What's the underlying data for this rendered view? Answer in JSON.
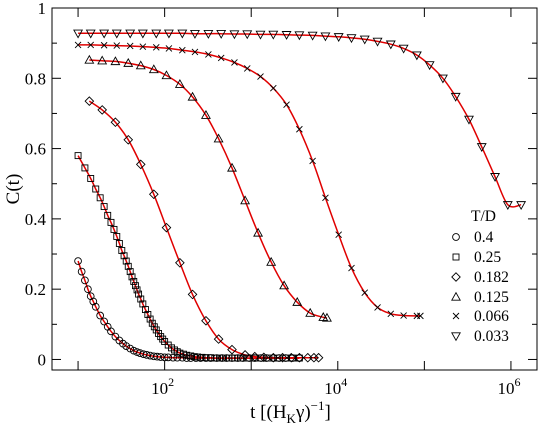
{
  "chart_data": {
    "type": "scatter",
    "title": "",
    "xlabel": {
      "prefix": "t [(H",
      "sub": "K",
      "suffix": "γ)",
      "sup": "−1",
      "close": "]"
    },
    "ylabel": "C(t)",
    "x_scale": "log",
    "xlim": [
      5,
      2000000
    ],
    "ylim": [
      -0.03,
      1.0
    ],
    "x_ticks": [
      {
        "value": 100,
        "base": "10",
        "exp": "2"
      },
      {
        "value": 10000,
        "base": "10",
        "exp": "4"
      },
      {
        "value": 1000000,
        "base": "10",
        "exp": "6"
      }
    ],
    "y_ticks": [
      {
        "value": 0,
        "label": "0"
      },
      {
        "value": 0.2,
        "label": "0.2"
      },
      {
        "value": 0.4,
        "label": "0.4"
      },
      {
        "value": 0.6,
        "label": "0.6"
      },
      {
        "value": 0.8,
        "label": "0.8"
      },
      {
        "value": 1.0,
        "label": "1"
      }
    ],
    "grid": false,
    "legend": {
      "title": "T/D",
      "position": "right"
    },
    "fit_color": "#e00000",
    "marker_color": "#000000",
    "series": [
      {
        "name": "0.4",
        "marker": "circle",
        "x": [
          10,
          11,
          12,
          13,
          14,
          15,
          16,
          18,
          20,
          22,
          24,
          27,
          30,
          33,
          36,
          40,
          44,
          48,
          52,
          57,
          62,
          68,
          75,
          82,
          90,
          100,
          110,
          125,
          140,
          160,
          180,
          200,
          230,
          260,
          300,
          340,
          400,
          460,
          520,
          600,
          700,
          800,
          950,
          1100,
          1300,
          1500,
          1800,
          2100,
          2500,
          3000,
          3600
        ],
        "y": [
          0.28,
          0.25,
          0.225,
          0.2,
          0.18,
          0.165,
          0.15,
          0.125,
          0.108,
          0.093,
          0.08,
          0.065,
          0.054,
          0.045,
          0.038,
          0.031,
          0.025,
          0.021,
          0.018,
          0.015,
          0.013,
          0.011,
          0.009,
          0.008,
          0.007,
          0.006,
          0.006,
          0.005,
          0.005,
          0.005,
          0.004,
          0.004,
          0.004,
          0.004,
          0.004,
          0.004,
          0.004,
          0.004,
          0.004,
          0.004,
          0.004,
          0.004,
          0.004,
          0.004,
          0.004,
          0.004,
          0.004,
          0.004,
          0.004,
          0.004,
          0.004
        ]
      },
      {
        "name": "0.25",
        "marker": "square",
        "x": [
          10,
          12,
          14,
          16,
          18,
          20,
          22,
          24,
          26,
          28,
          30,
          32,
          34,
          36,
          38,
          40,
          42,
          44,
          46,
          48,
          50,
          53,
          56,
          60,
          64,
          68,
          72,
          76,
          80,
          85,
          90,
          95,
          100,
          110,
          120,
          130,
          140,
          150,
          165,
          180,
          200,
          220,
          240,
          270,
          300,
          340,
          380,
          430,
          480,
          550,
          650,
          750,
          900,
          1100,
          1300,
          1600,
          2000,
          2500,
          3000,
          3600
        ],
        "y": [
          0.58,
          0.545,
          0.515,
          0.485,
          0.46,
          0.435,
          0.41,
          0.39,
          0.37,
          0.35,
          0.33,
          0.31,
          0.295,
          0.28,
          0.265,
          0.25,
          0.235,
          0.222,
          0.21,
          0.198,
          0.186,
          0.172,
          0.158,
          0.142,
          0.128,
          0.115,
          0.103,
          0.093,
          0.084,
          0.074,
          0.065,
          0.058,
          0.051,
          0.041,
          0.033,
          0.027,
          0.022,
          0.018,
          0.015,
          0.012,
          0.01,
          0.008,
          0.007,
          0.006,
          0.005,
          0.005,
          0.004,
          0.004,
          0.004,
          0.004,
          0.004,
          0.004,
          0.004,
          0.004,
          0.004,
          0.004,
          0.004,
          0.004,
          0.004,
          0.004
        ]
      },
      {
        "name": "0.182",
        "marker": "diamond",
        "x": [
          13.5,
          19,
          27,
          38,
          53,
          75,
          105,
          150,
          210,
          300,
          420,
          600,
          850,
          1100,
          1400,
          1800,
          2300,
          2900,
          3600,
          4500,
          5300,
          6000
        ],
        "y": [
          0.735,
          0.71,
          0.675,
          0.625,
          0.555,
          0.47,
          0.375,
          0.275,
          0.185,
          0.11,
          0.058,
          0.028,
          0.013,
          0.008,
          0.006,
          0.005,
          0.005,
          0.005,
          0.005,
          0.005,
          0.005,
          0.005
        ]
      },
      {
        "name": "0.125",
        "marker": "triangle-up",
        "x": [
          13.5,
          19,
          27,
          38,
          53,
          75,
          105,
          150,
          210,
          300,
          420,
          600,
          850,
          1200,
          1700,
          2400,
          3400,
          4800,
          6800,
          7500
        ],
        "y": [
          0.852,
          0.85,
          0.848,
          0.843,
          0.836,
          0.825,
          0.808,
          0.783,
          0.747,
          0.695,
          0.628,
          0.545,
          0.452,
          0.36,
          0.277,
          0.21,
          0.163,
          0.132,
          0.12,
          0.118
        ]
      },
      {
        "name": "0.066",
        "marker": "cross",
        "x": [
          10,
          14,
          20,
          28,
          40,
          56,
          80,
          112,
          160,
          224,
          320,
          450,
          640,
          900,
          1280,
          1800,
          2560,
          3600,
          5120,
          7200,
          10240,
          14400,
          20480,
          28800,
          40960,
          57600,
          81920,
          90000
        ],
        "y": [
          0.895,
          0.895,
          0.894,
          0.893,
          0.892,
          0.89,
          0.888,
          0.885,
          0.88,
          0.875,
          0.868,
          0.858,
          0.845,
          0.828,
          0.805,
          0.772,
          0.725,
          0.655,
          0.565,
          0.46,
          0.355,
          0.26,
          0.19,
          0.148,
          0.13,
          0.125,
          0.124,
          0.124
        ]
      },
      {
        "name": "0.033",
        "marker": "triangle-down",
        "x": [
          10,
          14,
          20,
          28,
          40,
          56,
          80,
          112,
          160,
          224,
          320,
          450,
          640,
          900,
          1280,
          1800,
          2560,
          3600,
          5120,
          7200,
          10240,
          14400,
          20480,
          28800,
          40960,
          57600,
          81920,
          115000,
          163840,
          230000,
          327680,
          460000,
          655360,
          920000,
          1310720
        ],
        "y": [
          0.928,
          0.928,
          0.928,
          0.928,
          0.928,
          0.928,
          0.928,
          0.928,
          0.928,
          0.927,
          0.927,
          0.927,
          0.926,
          0.926,
          0.925,
          0.925,
          0.924,
          0.923,
          0.922,
          0.92,
          0.918,
          0.915,
          0.911,
          0.905,
          0.897,
          0.885,
          0.866,
          0.838,
          0.8,
          0.748,
          0.683,
          0.605,
          0.52,
          0.44,
          0.44
        ]
      }
    ]
  }
}
